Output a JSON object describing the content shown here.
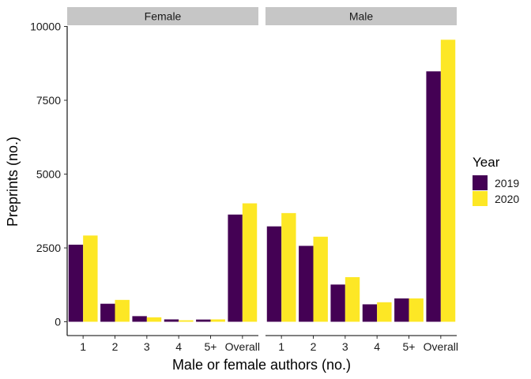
{
  "chart_data": {
    "type": "bar",
    "xlabel": "Male or female authors (no.)",
    "ylabel": "Preprints (no.)",
    "ylim": [
      0,
      10000
    ],
    "yticks": [
      0,
      2500,
      5000,
      7500,
      10000
    ],
    "categories": [
      "1",
      "2",
      "3",
      "4",
      "5+",
      "Overall"
    ],
    "legend": {
      "title": "Year",
      "position": "right"
    },
    "colors": {
      "2019": "#440154",
      "2020": "#FDE725",
      "strip": "#C6C6C6"
    },
    "panels": [
      {
        "label": "Female",
        "series": [
          {
            "name": "2019",
            "values": [
              2610,
              610,
              190,
              80,
              75,
              3630
            ]
          },
          {
            "name": "2020",
            "values": [
              2920,
              740,
              150,
              50,
              80,
              4010
            ]
          }
        ]
      },
      {
        "label": "Male",
        "series": [
          {
            "name": "2019",
            "values": [
              3230,
              2570,
              1260,
              590,
              790,
              8480
            ]
          },
          {
            "name": "2020",
            "values": [
              3680,
              2880,
              1510,
              660,
              790,
              9550
            ]
          }
        ]
      }
    ]
  }
}
